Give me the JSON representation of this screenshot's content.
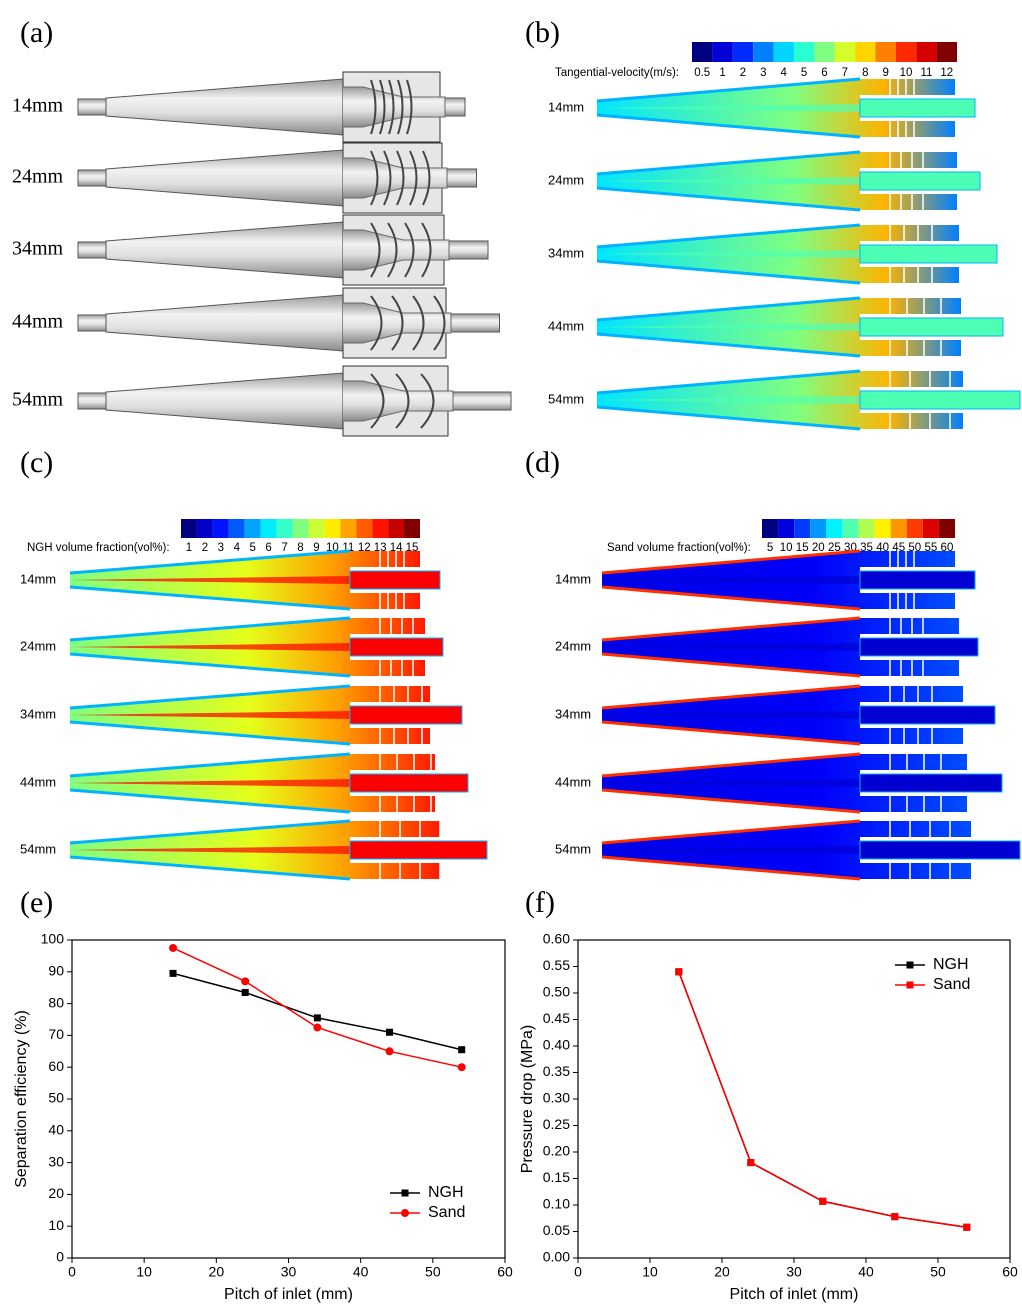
{
  "panels": {
    "a": {
      "label": "(a)",
      "rows": [
        "14mm",
        "24mm",
        "34mm",
        "44mm",
        "54mm"
      ]
    },
    "b": {
      "label": "(b)",
      "colorbar": {
        "title": "Tangential-velocity(m/s):",
        "ticks": [
          0.5,
          1,
          2,
          3,
          4,
          5,
          6,
          7,
          8,
          9,
          10,
          11,
          12
        ]
      },
      "rows": [
        "14mm",
        "24mm",
        "34mm",
        "44mm",
        "54mm"
      ]
    },
    "c": {
      "label": "(c)",
      "colorbar": {
        "title": "NGH volume fraction(vol%):",
        "ticks": [
          1,
          2,
          3,
          4,
          5,
          6,
          7,
          8,
          9,
          10,
          11,
          12,
          13,
          14,
          15
        ]
      },
      "rows": [
        "14mm",
        "24mm",
        "34mm",
        "44mm",
        "54mm"
      ]
    },
    "d": {
      "label": "(d)",
      "colorbar": {
        "title": "Sand volume fraction(vol%):",
        "ticks": [
          5,
          10,
          15,
          20,
          25,
          30,
          35,
          40,
          45,
          50,
          55,
          60
        ]
      },
      "rows": [
        "14mm",
        "24mm",
        "34mm",
        "44mm",
        "54mm"
      ]
    }
  },
  "chart_data": [
    {
      "type": "line",
      "label": "(e)",
      "x_label": "Pitch of inlet (mm)",
      "y_label": "Separation efficiency (%)",
      "x": [
        14,
        24,
        34,
        44,
        54
      ],
      "xlim": [
        0,
        60
      ],
      "xticks": [
        0,
        10,
        20,
        30,
        40,
        50,
        60
      ],
      "ylim": [
        0,
        100
      ],
      "yticks": [
        0,
        10,
        20,
        30,
        40,
        50,
        60,
        70,
        80,
        90,
        100
      ],
      "legend": "lower right",
      "series": [
        {
          "name": "NGH",
          "color": "#000000",
          "marker": "square",
          "values": [
            89.5,
            83.5,
            75.5,
            71,
            65.5
          ]
        },
        {
          "name": "Sand",
          "color": "#ff0000",
          "marker": "circle",
          "values": [
            97.5,
            87,
            72.5,
            65,
            60
          ]
        }
      ]
    },
    {
      "type": "line",
      "label": "(f)",
      "x_label": "Pitch of inlet (mm)",
      "y_label": "Pressure drop (MPa)",
      "x": [
        14,
        24,
        34,
        44,
        54
      ],
      "xlim": [
        0,
        60
      ],
      "xticks": [
        0,
        10,
        20,
        30,
        40,
        50,
        60
      ],
      "ylim": [
        0,
        0.6
      ],
      "yticks": [
        {
          "value": 0,
          "label": "0.00"
        },
        {
          "value": 0.05,
          "label": "0.05"
        },
        {
          "value": 0.1,
          "label": "0.10"
        },
        {
          "value": 0.15,
          "label": "0.15"
        },
        {
          "value": 0.2,
          "label": "0.20"
        },
        {
          "value": 0.25,
          "label": "0.25"
        },
        {
          "value": 0.3,
          "label": "0.30"
        },
        {
          "value": 0.35,
          "label": "0.35"
        },
        {
          "value": 0.4,
          "label": "0.40"
        },
        {
          "value": 0.45,
          "label": "0.45"
        },
        {
          "value": 0.5,
          "label": "0.50"
        },
        {
          "value": 0.55,
          "label": "0.55"
        },
        {
          "value": 0.6,
          "label": "0.60"
        }
      ],
      "legend": "upper right",
      "series": [
        {
          "name": "NGH",
          "color": "#000000",
          "marker": "square",
          "values": [
            0.54,
            0.18,
            0.107,
            0.078,
            0.058
          ]
        },
        {
          "name": "Sand",
          "color": "#ff0000",
          "marker": "square",
          "values": [
            0.54,
            0.18,
            0.107,
            0.078,
            0.058
          ]
        }
      ]
    }
  ]
}
